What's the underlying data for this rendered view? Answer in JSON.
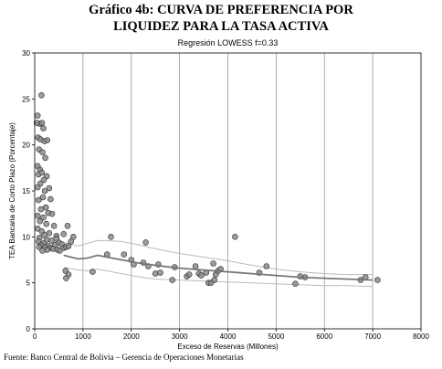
{
  "title": {
    "prefix": "Gráfico 4b:",
    "line1_rest": "CURVA DE PREFERENCIA POR",
    "line2": "LIQUIDEZ PARA LA TASA ACTIVA"
  },
  "footnote": "Fuente:  Banco Central de Bolivia – Gerencia de Operaciones Monetarias",
  "colors": {
    "point_fill": "#8a8a8a",
    "point_stroke": "#333333",
    "fit_line": "#777777",
    "band_line": "#bbbbbb",
    "grid_line": "#9a9a9a"
  },
  "chart_data": {
    "type": "scatter",
    "title": "Regresión LOWESS f=0.33",
    "xlabel": "Exceso de Reservas (Millones)",
    "ylabel": "TEA Bancaria de Corto Plazo (Porcentaje)",
    "xlim": [
      0,
      8000
    ],
    "ylim": [
      0,
      30
    ],
    "xticks": [
      "0",
      "1000",
      "2000",
      "3000",
      "4000",
      "5000",
      "6000",
      "7000",
      "8000"
    ],
    "yticks": [
      "0",
      "5",
      "10",
      "15",
      "20",
      "25",
      "30"
    ],
    "grid": "vertical",
    "points": [
      [
        140,
        25.4
      ],
      [
        60,
        23.2
      ],
      [
        100,
        22.3
      ],
      [
        150,
        22.4
      ],
      [
        40,
        22.4
      ],
      [
        180,
        21.8
      ],
      [
        70,
        20.8
      ],
      [
        120,
        20.6
      ],
      [
        200,
        20.4
      ],
      [
        260,
        20.5
      ],
      [
        90,
        19.5
      ],
      [
        160,
        19.2
      ],
      [
        220,
        18.6
      ],
      [
        60,
        17.7
      ],
      [
        110,
        17.3
      ],
      [
        80,
        16.8
      ],
      [
        150,
        17.0
      ],
      [
        250,
        16.6
      ],
      [
        190,
        16.2
      ],
      [
        120,
        15.8
      ],
      [
        60,
        15.4
      ],
      [
        210,
        15.0
      ],
      [
        300,
        15.3
      ],
      [
        170,
        14.3
      ],
      [
        80,
        14.0
      ],
      [
        330,
        14.1
      ],
      [
        230,
        13.2
      ],
      [
        130,
        13.0
      ],
      [
        280,
        12.6
      ],
      [
        60,
        12.3
      ],
      [
        360,
        12.5
      ],
      [
        180,
        12.1
      ],
      [
        110,
        11.7
      ],
      [
        240,
        11.4
      ],
      [
        400,
        11.2
      ],
      [
        60,
        10.9
      ],
      [
        150,
        10.6
      ],
      [
        300,
        10.4
      ],
      [
        200,
        10.2
      ],
      [
        450,
        10.1
      ],
      [
        100,
        9.9
      ],
      [
        250,
        9.7
      ],
      [
        350,
        9.6
      ],
      [
        80,
        9.5
      ],
      [
        180,
        9.3
      ],
      [
        500,
        9.4
      ],
      [
        130,
        9.1
      ],
      [
        280,
        9.0
      ],
      [
        420,
        9.1
      ],
      [
        220,
        8.9
      ],
      [
        330,
        8.8
      ],
      [
        560,
        9.2
      ],
      [
        600,
        8.8
      ],
      [
        380,
        8.7
      ],
      [
        470,
        8.6
      ],
      [
        260,
        8.6
      ],
      [
        160,
        8.5
      ],
      [
        90,
        8.9
      ],
      [
        520,
        8.5
      ],
      [
        650,
        8.9
      ],
      [
        700,
        9.0
      ],
      [
        750,
        9.5
      ],
      [
        800,
        10.0
      ],
      [
        450,
        9.8
      ],
      [
        600,
        10.3
      ],
      [
        680,
        11.2
      ],
      [
        640,
        6.3
      ],
      [
        700,
        5.9
      ],
      [
        650,
        5.5
      ],
      [
        1200,
        6.2
      ],
      [
        1500,
        8.1
      ],
      [
        1580,
        10.0
      ],
      [
        1850,
        8.1
      ],
      [
        2000,
        7.5
      ],
      [
        2050,
        7.0
      ],
      [
        2250,
        7.2
      ],
      [
        2300,
        9.4
      ],
      [
        2350,
        6.8
      ],
      [
        2500,
        6.0
      ],
      [
        2560,
        7.0
      ],
      [
        2600,
        6.1
      ],
      [
        2850,
        5.3
      ],
      [
        2900,
        6.7
      ],
      [
        3150,
        5.7
      ],
      [
        3200,
        5.9
      ],
      [
        3330,
        6.8
      ],
      [
        3400,
        6.0
      ],
      [
        3450,
        5.8
      ],
      [
        3550,
        6.1
      ],
      [
        3600,
        5.0
      ],
      [
        3650,
        5.0
      ],
      [
        3700,
        7.1
      ],
      [
        3720,
        5.3
      ],
      [
        3750,
        5.9
      ],
      [
        3800,
        6.3
      ],
      [
        3850,
        6.5
      ],
      [
        4150,
        10.0
      ],
      [
        4650,
        6.1
      ],
      [
        4800,
        6.8
      ],
      [
        5400,
        4.9
      ],
      [
        5500,
        5.7
      ],
      [
        5600,
        5.6
      ],
      [
        6750,
        5.3
      ],
      [
        6850,
        5.6
      ],
      [
        7100,
        5.3
      ]
    ],
    "lowess_fit": [
      [
        600,
        8.0
      ],
      [
        900,
        7.6
      ],
      [
        1100,
        7.7
      ],
      [
        1300,
        8.0
      ],
      [
        1500,
        7.8
      ],
      [
        1800,
        7.5
      ],
      [
        2100,
        7.2
      ],
      [
        2500,
        6.9
      ],
      [
        3000,
        6.6
      ],
      [
        3500,
        6.4
      ],
      [
        4000,
        6.2
      ],
      [
        4500,
        6.0
      ],
      [
        5000,
        5.8
      ],
      [
        5500,
        5.6
      ],
      [
        6000,
        5.5
      ],
      [
        6500,
        5.4
      ],
      [
        7000,
        5.3
      ]
    ],
    "upper_band": [
      [
        600,
        9.4
      ],
      [
        900,
        9.0
      ],
      [
        1100,
        9.3
      ],
      [
        1300,
        9.6
      ],
      [
        1500,
        9.6
      ],
      [
        1800,
        9.5
      ],
      [
        2100,
        9.2
      ],
      [
        2500,
        8.7
      ],
      [
        3000,
        8.2
      ],
      [
        3500,
        7.8
      ],
      [
        4000,
        7.4
      ],
      [
        4500,
        6.9
      ],
      [
        5000,
        6.5
      ],
      [
        5500,
        6.2
      ],
      [
        6000,
        6.0
      ],
      [
        6500,
        5.9
      ],
      [
        7000,
        5.9
      ]
    ],
    "lower_band": [
      [
        600,
        6.7
      ],
      [
        900,
        6.4
      ],
      [
        1100,
        6.3
      ],
      [
        1300,
        6.5
      ],
      [
        1500,
        6.3
      ],
      [
        1800,
        6.0
      ],
      [
        2100,
        5.7
      ],
      [
        2500,
        5.4
      ],
      [
        3000,
        5.3
      ],
      [
        3500,
        5.2
      ],
      [
        4000,
        5.1
      ],
      [
        4500,
        5.0
      ],
      [
        5000,
        4.9
      ],
      [
        5500,
        4.8
      ],
      [
        6000,
        4.7
      ],
      [
        6500,
        4.7
      ],
      [
        7000,
        4.6
      ]
    ]
  }
}
